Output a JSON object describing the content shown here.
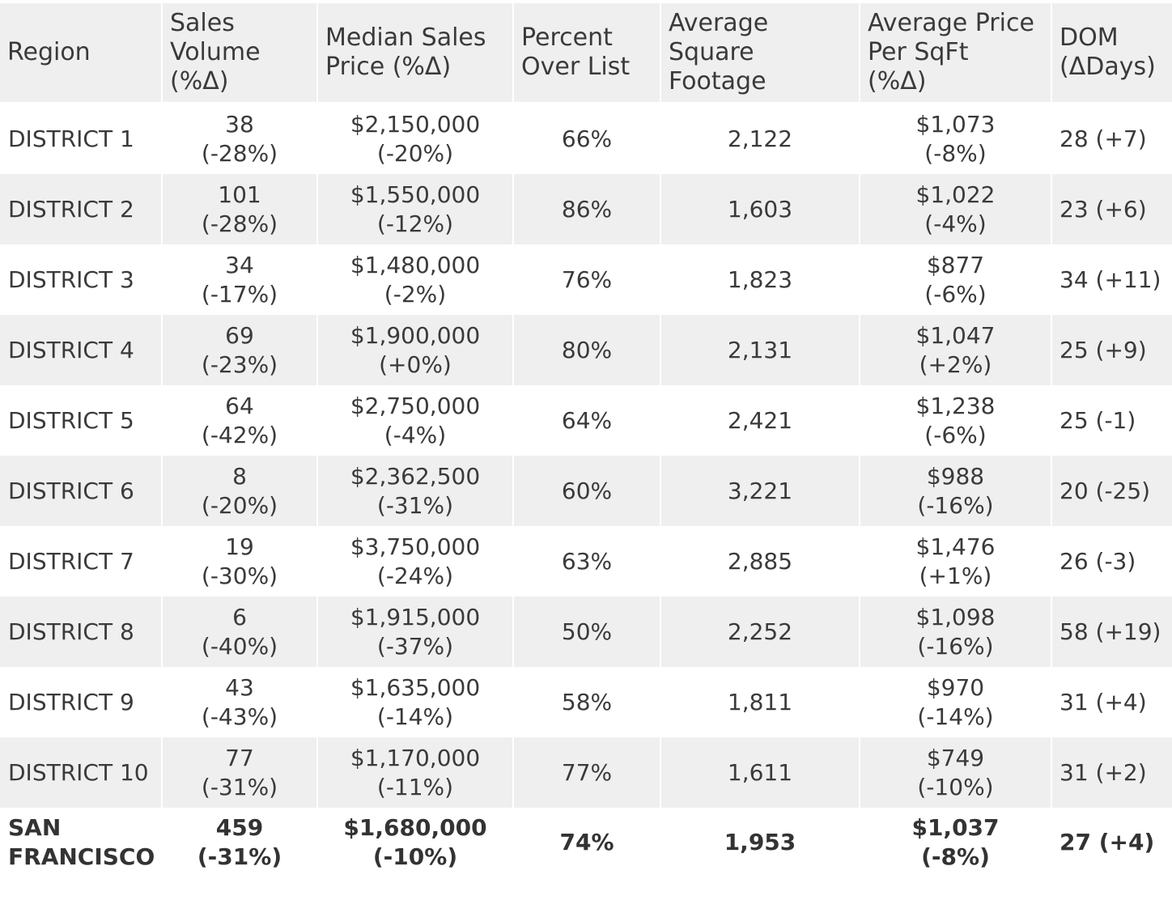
{
  "chart_data": {
    "type": "table",
    "columns": [
      "Region",
      "Sales\nVolume\n(%Δ)",
      "Median Sales\nPrice (%Δ)",
      "Percent\nOver List",
      "Average\nSquare\nFootage",
      "Average Price\nPer SqFt\n(%Δ)",
      "DOM\n(ΔDays)"
    ],
    "rows": [
      {
        "region": "DISTRICT 1",
        "sales_volume": "38\n(-28%)",
        "median_price": "$2,150,000\n(-20%)",
        "pct_over_list": "66%",
        "avg_sqft": "2,122",
        "avg_price_sqft": "$1,073\n(-8%)",
        "dom": "28 (+7)"
      },
      {
        "region": "DISTRICT 2",
        "sales_volume": "101\n(-28%)",
        "median_price": "$1,550,000\n(-12%)",
        "pct_over_list": "86%",
        "avg_sqft": "1,603",
        "avg_price_sqft": "$1,022\n(-4%)",
        "dom": "23 (+6)"
      },
      {
        "region": "DISTRICT 3",
        "sales_volume": "34\n(-17%)",
        "median_price": "$1,480,000\n(-2%)",
        "pct_over_list": "76%",
        "avg_sqft": "1,823",
        "avg_price_sqft": "$877\n(-6%)",
        "dom": "34 (+11)"
      },
      {
        "region": "DISTRICT 4",
        "sales_volume": "69\n(-23%)",
        "median_price": "$1,900,000\n(+0%)",
        "pct_over_list": "80%",
        "avg_sqft": "2,131",
        "avg_price_sqft": "$1,047\n(+2%)",
        "dom": "25 (+9)"
      },
      {
        "region": "DISTRICT 5",
        "sales_volume": "64\n(-42%)",
        "median_price": "$2,750,000\n(-4%)",
        "pct_over_list": "64%",
        "avg_sqft": "2,421",
        "avg_price_sqft": "$1,238\n(-6%)",
        "dom": "25 (-1)"
      },
      {
        "region": "DISTRICT 6",
        "sales_volume": "8\n(-20%)",
        "median_price": "$2,362,500\n(-31%)",
        "pct_over_list": "60%",
        "avg_sqft": "3,221",
        "avg_price_sqft": "$988\n(-16%)",
        "dom": "20 (-25)"
      },
      {
        "region": "DISTRICT 7",
        "sales_volume": "19\n(-30%)",
        "median_price": "$3,750,000\n(-24%)",
        "pct_over_list": "63%",
        "avg_sqft": "2,885",
        "avg_price_sqft": "$1,476\n(+1%)",
        "dom": "26 (-3)"
      },
      {
        "region": "DISTRICT 8",
        "sales_volume": "6\n(-40%)",
        "median_price": "$1,915,000\n(-37%)",
        "pct_over_list": "50%",
        "avg_sqft": "2,252",
        "avg_price_sqft": "$1,098\n(-16%)",
        "dom": "58 (+19)"
      },
      {
        "region": "DISTRICT 9",
        "sales_volume": "43\n(-43%)",
        "median_price": "$1,635,000\n(-14%)",
        "pct_over_list": "58%",
        "avg_sqft": "1,811",
        "avg_price_sqft": "$970\n(-14%)",
        "dom": "31 (+4)"
      },
      {
        "region": "DISTRICT 10",
        "sales_volume": "77\n(-31%)",
        "median_price": "$1,170,000\n(-11%)",
        "pct_over_list": "77%",
        "avg_sqft": "1,611",
        "avg_price_sqft": "$749\n(-10%)",
        "dom": "31 (+2)"
      }
    ],
    "total": {
      "region": "SAN\nFRANCISCO",
      "sales_volume": "459\n(-31%)",
      "median_price": "$1,680,000\n(-10%)",
      "pct_over_list": "74%",
      "avg_sqft": "1,953",
      "avg_price_sqft": "$1,037\n(-8%)",
      "dom": "27 (+4)"
    }
  },
  "colors": {
    "header_bg": "#efefef",
    "stripe_bg": "#efefef",
    "text": "#3a3a3a"
  }
}
